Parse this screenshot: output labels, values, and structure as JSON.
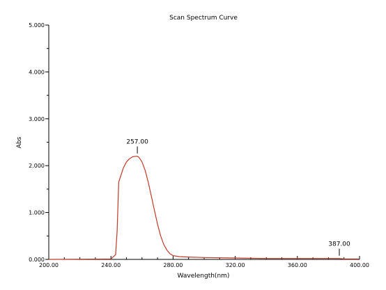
{
  "chart_data": {
    "type": "line",
    "title": "Scan Spectrum Curve",
    "xlabel": "Wavelength(nm)",
    "ylabel": "Abs",
    "xlim": [
      200,
      400
    ],
    "ylim": [
      0,
      5
    ],
    "x_ticks": [
      {
        "value": 200,
        "label": "200.00"
      },
      {
        "value": 240,
        "label": "240.00"
      },
      {
        "value": 280,
        "label": "280.00"
      },
      {
        "value": 320,
        "label": "320.00"
      },
      {
        "value": 360,
        "label": "360.00"
      },
      {
        "value": 400,
        "label": "400.00"
      }
    ],
    "y_ticks": [
      {
        "value": 0,
        "label": "0.000"
      },
      {
        "value": 1,
        "label": "1.000"
      },
      {
        "value": 2,
        "label": "2.000"
      },
      {
        "value": 3,
        "label": "3.000"
      },
      {
        "value": 4,
        "label": "4.000"
      },
      {
        "value": 5,
        "label": "5.000"
      }
    ],
    "grid": false,
    "series": [
      {
        "color": "#c0392b",
        "x": [
          200,
          240,
          243,
          244,
          245,
          246,
          248,
          250,
          252,
          254,
          256,
          257,
          258,
          260,
          262,
          264,
          266,
          268,
          270,
          272,
          274,
          276,
          278,
          280,
          284,
          290,
          300,
          320,
          340,
          360,
          380,
          387,
          390,
          400
        ],
        "y": [
          0.0,
          0.01,
          0.1,
          0.6,
          1.65,
          1.75,
          1.95,
          2.08,
          2.15,
          2.19,
          2.2,
          2.2,
          2.18,
          2.08,
          1.9,
          1.65,
          1.35,
          1.05,
          0.75,
          0.5,
          0.32,
          0.2,
          0.12,
          0.08,
          0.06,
          0.05,
          0.04,
          0.03,
          0.02,
          0.02,
          0.02,
          0.02,
          0.01,
          0.01
        ]
      }
    ],
    "annotations": [
      {
        "x": 257,
        "y": 2.2,
        "label": "257.00"
      },
      {
        "x": 387,
        "y": 0.02,
        "label": "387.00"
      }
    ]
  }
}
